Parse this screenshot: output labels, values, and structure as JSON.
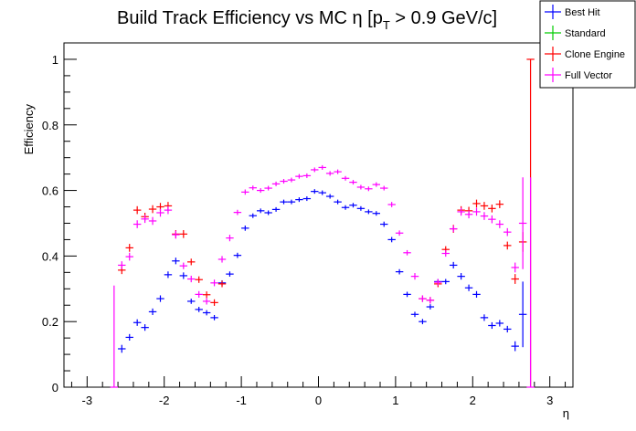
{
  "chart_data": {
    "type": "scatter",
    "title_main": "Build Track Efficiency vs MC η [p",
    "title_sub": "T",
    "title_tail": " > 0.9 GeV/c]",
    "xlabel": "η",
    "ylabel": "Efficiency",
    "xlim": [
      -3.3,
      3.3
    ],
    "ylim": [
      0,
      1.05
    ],
    "xticks": [
      -3,
      -2,
      -1,
      0,
      1,
      2,
      3
    ],
    "xtick_labels": [
      "-3",
      "-2",
      "-1",
      "0",
      "1",
      "2",
      "3"
    ],
    "yticks": [
      0,
      0.2,
      0.4,
      0.6,
      0.8,
      1
    ],
    "ytick_labels": [
      "0",
      "0.2",
      "0.4",
      "0.6",
      "0.8",
      "1"
    ],
    "bin_half_width": 0.05,
    "legend_position": "top-right",
    "series": [
      {
        "name": "Best Hit",
        "color": "#0000ff",
        "x": [
          -2.55,
          -2.45,
          -2.35,
          -2.25,
          -2.15,
          -2.05,
          -1.95,
          -1.85,
          -1.75,
          -1.65,
          -1.55,
          -1.45,
          -1.35,
          -1.25,
          -1.15,
          -1.05,
          -0.95,
          -0.85,
          -0.75,
          -0.65,
          -0.55,
          -0.45,
          -0.35,
          -0.25,
          -0.15,
          -0.05,
          0.05,
          0.15,
          0.25,
          0.35,
          0.45,
          0.55,
          0.65,
          0.75,
          0.85,
          0.95,
          1.05,
          1.15,
          1.25,
          1.35,
          1.45,
          1.55,
          1.65,
          1.75,
          1.85,
          1.95,
          2.05,
          2.15,
          2.25,
          2.35,
          2.45,
          2.55,
          2.65
        ],
        "y": [
          0.117,
          0.152,
          0.197,
          0.182,
          0.23,
          0.27,
          0.343,
          0.385,
          0.34,
          0.262,
          0.237,
          0.227,
          0.212,
          0.318,
          0.345,
          0.402,
          0.485,
          0.523,
          0.538,
          0.532,
          0.542,
          0.565,
          0.565,
          0.572,
          0.575,
          0.597,
          0.593,
          0.582,
          0.565,
          0.548,
          0.555,
          0.545,
          0.535,
          0.53,
          0.497,
          0.45,
          0.352,
          0.283,
          0.222,
          0.2,
          0.245,
          0.322,
          0.322,
          0.372,
          0.338,
          0.303,
          0.283,
          0.212,
          0.188,
          0.195,
          0.177,
          0.125,
          0.222
        ],
        "yerr": [
          0.012,
          0.01,
          0.01,
          0.01,
          0.01,
          0.01,
          0.01,
          0.01,
          0.01,
          0.008,
          0.008,
          0.008,
          0.008,
          0.008,
          0.008,
          0.008,
          0.008,
          0.007,
          0.007,
          0.007,
          0.007,
          0.007,
          0.007,
          0.007,
          0.007,
          0.007,
          0.007,
          0.007,
          0.007,
          0.007,
          0.007,
          0.007,
          0.007,
          0.007,
          0.008,
          0.008,
          0.008,
          0.008,
          0.008,
          0.008,
          0.008,
          0.008,
          0.008,
          0.01,
          0.01,
          0.01,
          0.01,
          0.01,
          0.01,
          0.01,
          0.01,
          0.015,
          0.1
        ]
      },
      {
        "name": "Standard",
        "color": "#00cc00",
        "x": [],
        "y": [],
        "yerr": []
      },
      {
        "name": "Clone Engine",
        "color": "#ff0000",
        "x": [
          -2.55,
          -2.45,
          -2.35,
          -2.25,
          -2.15,
          -2.05,
          -1.95,
          -1.85,
          -1.75,
          -1.65,
          -1.55,
          -1.45,
          -1.35,
          -1.25,
          1.35,
          1.45,
          1.55,
          1.65,
          1.75,
          1.85,
          1.95,
          2.05,
          2.15,
          2.25,
          2.35,
          2.45,
          2.55,
          2.65,
          2.75
        ],
        "y": [
          0.357,
          0.425,
          0.54,
          0.52,
          0.543,
          0.55,
          0.553,
          0.467,
          0.467,
          0.382,
          0.328,
          0.282,
          0.258,
          0.315,
          0.27,
          0.265,
          0.315,
          0.42,
          0.483,
          0.54,
          0.538,
          0.56,
          0.553,
          0.545,
          0.558,
          0.432,
          0.33,
          0.443,
          1.0
        ],
        "yerr": [
          0.012,
          0.012,
          0.012,
          0.012,
          0.012,
          0.012,
          0.012,
          0.012,
          0.012,
          0.01,
          0.01,
          0.01,
          0.01,
          0.01,
          0.01,
          0.01,
          0.01,
          0.01,
          0.012,
          0.012,
          0.012,
          0.012,
          0.012,
          0.012,
          0.012,
          0.012,
          0.015,
          0.03,
          0.0
        ]
      },
      {
        "name": "Full Vector",
        "color": "#ff00ff",
        "x": [
          -2.65,
          -2.55,
          -2.45,
          -2.35,
          -2.25,
          -2.15,
          -2.05,
          -1.95,
          -1.85,
          -1.75,
          -1.65,
          -1.55,
          -1.45,
          -1.35,
          -1.25,
          -1.15,
          -1.05,
          -0.95,
          -0.85,
          -0.75,
          -0.65,
          -0.55,
          -0.45,
          -0.35,
          -0.25,
          -0.15,
          -0.05,
          0.05,
          0.15,
          0.25,
          0.35,
          0.45,
          0.55,
          0.65,
          0.75,
          0.85,
          0.95,
          1.05,
          1.15,
          1.25,
          1.35,
          1.45,
          1.55,
          1.65,
          1.75,
          1.85,
          1.95,
          2.05,
          2.15,
          2.25,
          2.35,
          2.45,
          2.55,
          2.65,
          2.75
        ],
        "y": [
          0.0,
          0.372,
          0.398,
          0.497,
          0.513,
          0.507,
          0.532,
          0.54,
          0.465,
          0.37,
          0.33,
          0.283,
          0.262,
          0.318,
          0.39,
          0.455,
          0.533,
          0.595,
          0.608,
          0.6,
          0.607,
          0.62,
          0.628,
          0.632,
          0.643,
          0.645,
          0.663,
          0.67,
          0.652,
          0.657,
          0.637,
          0.625,
          0.61,
          0.605,
          0.618,
          0.607,
          0.557,
          0.47,
          0.41,
          0.338,
          0.27,
          0.265,
          0.32,
          0.408,
          0.483,
          0.535,
          0.527,
          0.535,
          0.522,
          0.512,
          0.497,
          0.473,
          0.365,
          0.5,
          0.0
        ],
        "yerr": [
          0.31,
          0.012,
          0.012,
          0.012,
          0.012,
          0.012,
          0.012,
          0.012,
          0.012,
          0.01,
          0.01,
          0.01,
          0.01,
          0.01,
          0.01,
          0.01,
          0.008,
          0.008,
          0.007,
          0.007,
          0.007,
          0.007,
          0.007,
          0.007,
          0.007,
          0.007,
          0.007,
          0.007,
          0.007,
          0.007,
          0.007,
          0.007,
          0.007,
          0.007,
          0.007,
          0.007,
          0.008,
          0.008,
          0.008,
          0.01,
          0.01,
          0.01,
          0.01,
          0.01,
          0.01,
          0.012,
          0.012,
          0.012,
          0.012,
          0.012,
          0.012,
          0.012,
          0.015,
          0.14,
          0.0
        ]
      }
    ]
  }
}
